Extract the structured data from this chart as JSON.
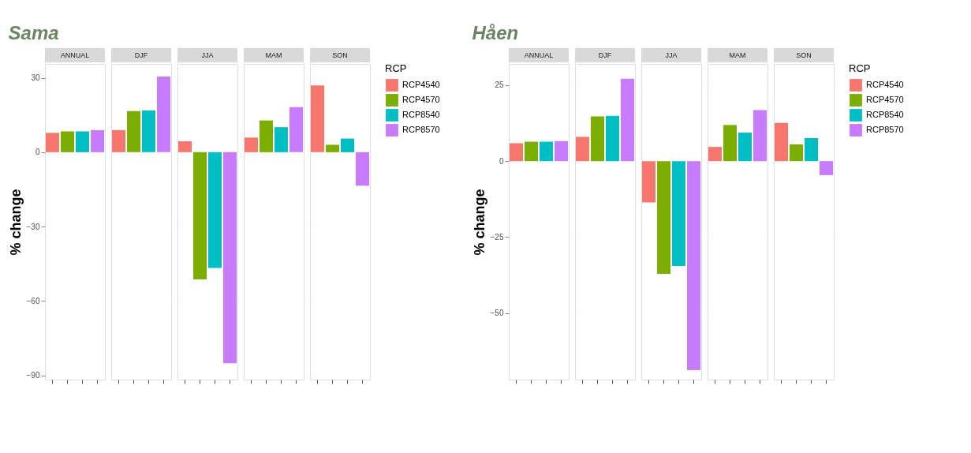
{
  "chart_data": [
    {
      "type": "bar",
      "title": "Sama",
      "ylabel": "% change",
      "legend_title": "RCP",
      "categories": [
        "ANNUAL",
        "DJF",
        "JJA",
        "MAM",
        "SON"
      ],
      "series": [
        {
          "name": "RCP4540",
          "color": "#f8766d",
          "values": [
            7.8,
            8.9,
            4.4,
            5.9,
            26.9
          ]
        },
        {
          "name": "RCP4570",
          "color": "#7cae00",
          "values": [
            8.4,
            16.6,
            -51.3,
            12.8,
            3.0
          ]
        },
        {
          "name": "RCP8540",
          "color": "#00bfc4",
          "values": [
            8.4,
            16.8,
            -46.7,
            10.1,
            5.5
          ]
        },
        {
          "name": "RCP8570",
          "color": "#c77cff",
          "values": [
            8.9,
            30.5,
            -85.1,
            18.2,
            -13.5
          ]
        }
      ],
      "ylim": [
        -91.7,
        35.6
      ],
      "yticks": [
        -90,
        -60,
        -30,
        0,
        30
      ],
      "grid": true,
      "legend": "right",
      "tick_labels": "y"
    },
    {
      "type": "bar",
      "title": "Håen",
      "ylabel": "% change",
      "legend_title": "RCP",
      "categories": [
        "ANNUAL",
        "DJF",
        "JJA",
        "MAM",
        "SON"
      ],
      "series": [
        {
          "name": "RCP4540",
          "color": "#f8766d",
          "values": [
            5.9,
            8.0,
            -13.6,
            4.7,
            12.6
          ]
        },
        {
          "name": "RCP4570",
          "color": "#7cae00",
          "values": [
            6.4,
            14.7,
            -37.1,
            11.9,
            5.5
          ]
        },
        {
          "name": "RCP8540",
          "color": "#00bfc4",
          "values": [
            6.4,
            14.9,
            -34.5,
            9.4,
            7.6
          ]
        },
        {
          "name": "RCP8570",
          "color": "#c77cff",
          "values": [
            6.6,
            27.1,
            -68.8,
            16.8,
            -4.6
          ]
        }
      ],
      "ylim": [
        -71.9,
        32
      ],
      "yticks": [
        -50,
        -25,
        0,
        25
      ],
      "grid": true,
      "legend": "right",
      "tick_labels": "y"
    }
  ]
}
